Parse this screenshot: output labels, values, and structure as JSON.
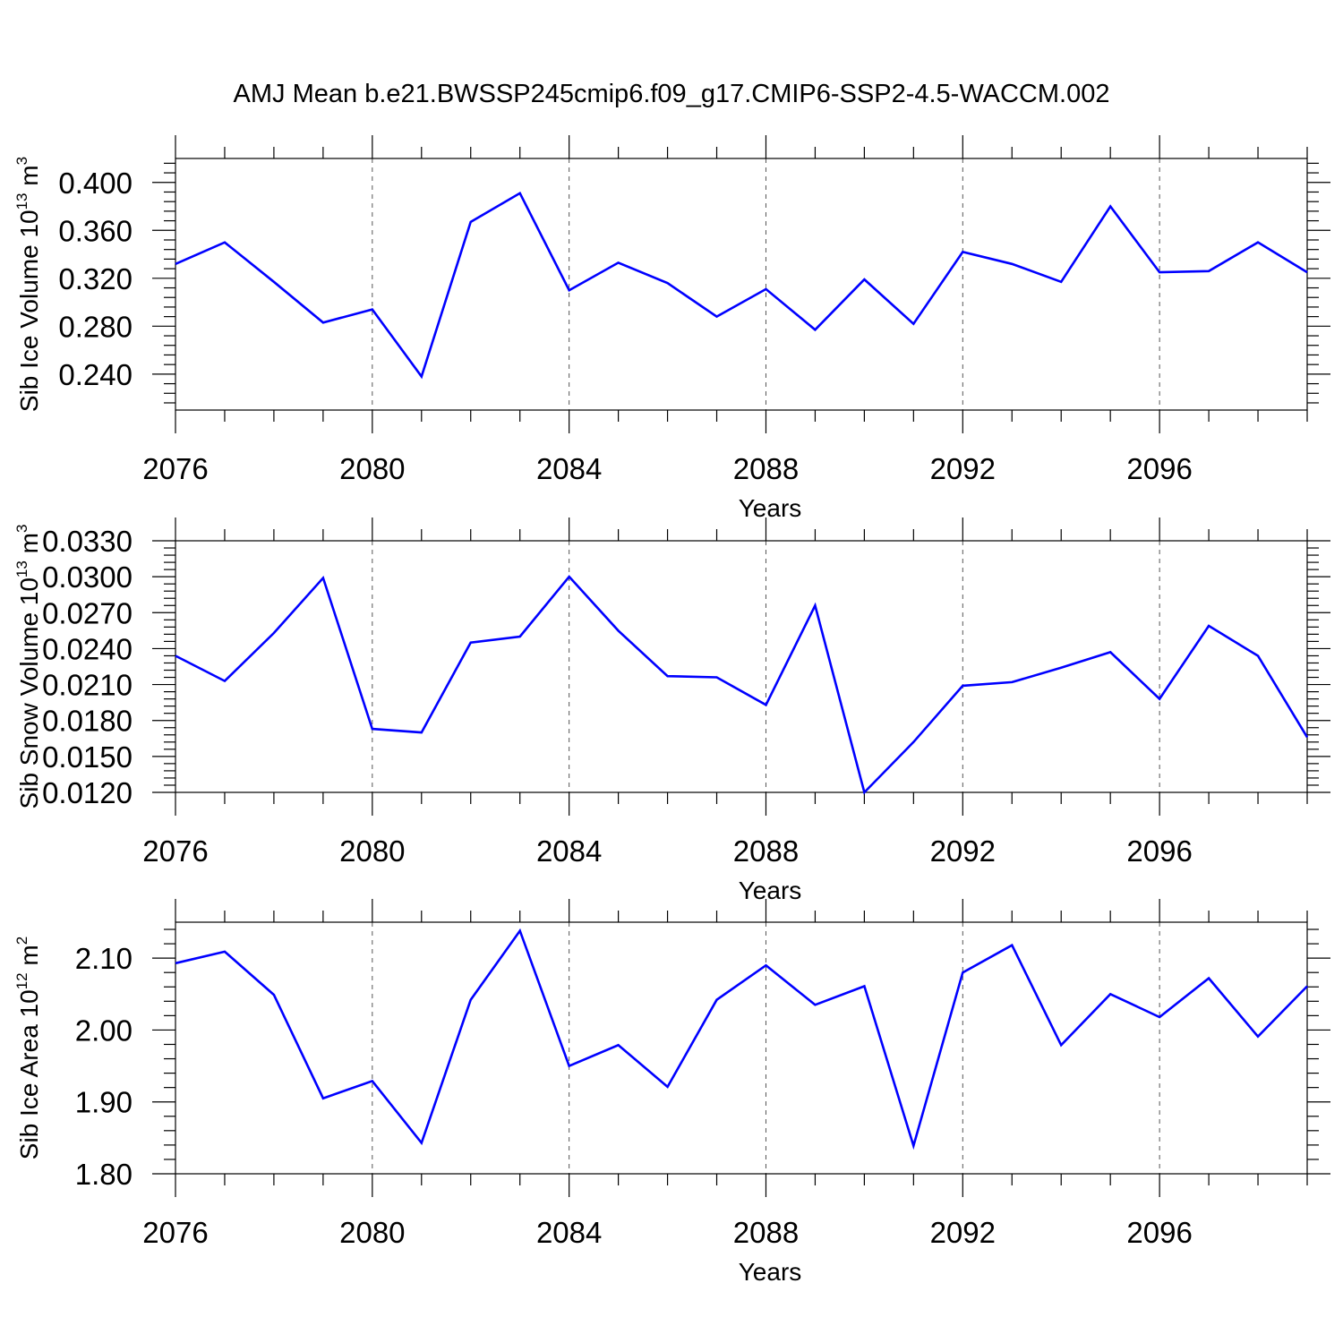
{
  "figure_title": "AMJ Mean b.e21.BWSSP245cmip6.f09_g17.CMIP6-SSP2-4.5-WACCM.002",
  "chart_data": [
    {
      "type": "line",
      "ylabel_main": "Sib Ice Volume 10",
      "ylabel_exp1": "13",
      "ylabel_unit": " m",
      "ylabel_exp2": "3",
      "xlabel": "Years",
      "x": [
        2076,
        2077,
        2078,
        2079,
        2080,
        2081,
        2082,
        2083,
        2084,
        2085,
        2086,
        2087,
        2088,
        2089,
        2090,
        2091,
        2092,
        2093,
        2094,
        2095,
        2096,
        2097,
        2098,
        2099
      ],
      "values": [
        0.332,
        0.35,
        0.317,
        0.283,
        0.294,
        0.238,
        0.367,
        0.391,
        0.31,
        0.333,
        0.316,
        0.288,
        0.311,
        0.277,
        0.319,
        0.282,
        0.342,
        0.332,
        0.317,
        0.38,
        0.325,
        0.326,
        0.35,
        0.325
      ],
      "xlim": [
        2076,
        2099
      ],
      "ylim": [
        0.21,
        0.42
      ],
      "xticks": [
        2076,
        2080,
        2084,
        2088,
        2092,
        2096
      ],
      "xtick_labels": [
        "2076",
        "2080",
        "2084",
        "2088",
        "2092",
        "2096"
      ],
      "yticks": [
        0.24,
        0.28,
        0.32,
        0.36,
        0.4
      ],
      "ytick_labels": [
        "0.240",
        "0.280",
        "0.320",
        "0.360",
        "0.400"
      ],
      "grid": "vertical dashed at major x ticks",
      "line_color": "#0000ff"
    },
    {
      "type": "line",
      "ylabel_main": "Sib Snow Volume 10",
      "ylabel_exp1": "13",
      "ylabel_unit": " m",
      "ylabel_exp2": "3",
      "xlabel": "Years",
      "x": [
        2076,
        2077,
        2078,
        2079,
        2080,
        2081,
        2082,
        2083,
        2084,
        2085,
        2086,
        2087,
        2088,
        2089,
        2090,
        2091,
        2092,
        2093,
        2094,
        2095,
        2096,
        2097,
        2098,
        2099
      ],
      "values": [
        0.0234,
        0.0213,
        0.0253,
        0.0299,
        0.0173,
        0.017,
        0.0245,
        0.025,
        0.03,
        0.0255,
        0.0217,
        0.0216,
        0.0193,
        0.0276,
        0.012,
        0.0162,
        0.0209,
        0.0212,
        0.0224,
        0.0237,
        0.0198,
        0.0259,
        0.0234,
        0.0166
      ],
      "xlim": [
        2076,
        2099
      ],
      "ylim": [
        0.012,
        0.033
      ],
      "xticks": [
        2076,
        2080,
        2084,
        2088,
        2092,
        2096
      ],
      "xtick_labels": [
        "2076",
        "2080",
        "2084",
        "2088",
        "2092",
        "2096"
      ],
      "yticks": [
        0.012,
        0.015,
        0.018,
        0.021,
        0.024,
        0.027,
        0.03,
        0.033
      ],
      "ytick_labels": [
        "0.0120",
        "0.0150",
        "0.0180",
        "0.0210",
        "0.0240",
        "0.0270",
        "0.0300",
        "0.0330"
      ],
      "grid": "vertical dashed at major x ticks",
      "line_color": "#0000ff"
    },
    {
      "type": "line",
      "ylabel_main": "Sib Ice Area 10",
      "ylabel_exp1": "12",
      "ylabel_unit": " m",
      "ylabel_exp2": "2",
      "xlabel": "Years",
      "x": [
        2076,
        2077,
        2078,
        2079,
        2080,
        2081,
        2082,
        2083,
        2084,
        2085,
        2086,
        2087,
        2088,
        2089,
        2090,
        2091,
        2092,
        2093,
        2094,
        2095,
        2096,
        2097,
        2098,
        2099
      ],
      "values": [
        2.093,
        2.109,
        2.049,
        1.905,
        1.929,
        1.843,
        2.042,
        2.138,
        1.95,
        1.979,
        1.921,
        2.042,
        2.09,
        2.035,
        2.061,
        1.839,
        2.08,
        2.118,
        1.979,
        2.05,
        2.018,
        2.072,
        1.991,
        2.061
      ],
      "xlim": [
        2076,
        2099
      ],
      "ylim": [
        1.8,
        2.15
      ],
      "xticks": [
        2076,
        2080,
        2084,
        2088,
        2092,
        2096
      ],
      "xtick_labels": [
        "2076",
        "2080",
        "2084",
        "2088",
        "2092",
        "2096"
      ],
      "yticks": [
        1.8,
        1.9,
        2.0,
        2.1
      ],
      "ytick_labels": [
        "1.80",
        "1.90",
        "2.00",
        "2.10"
      ],
      "grid": "vertical dashed at major x ticks",
      "line_color": "#0000ff"
    }
  ]
}
